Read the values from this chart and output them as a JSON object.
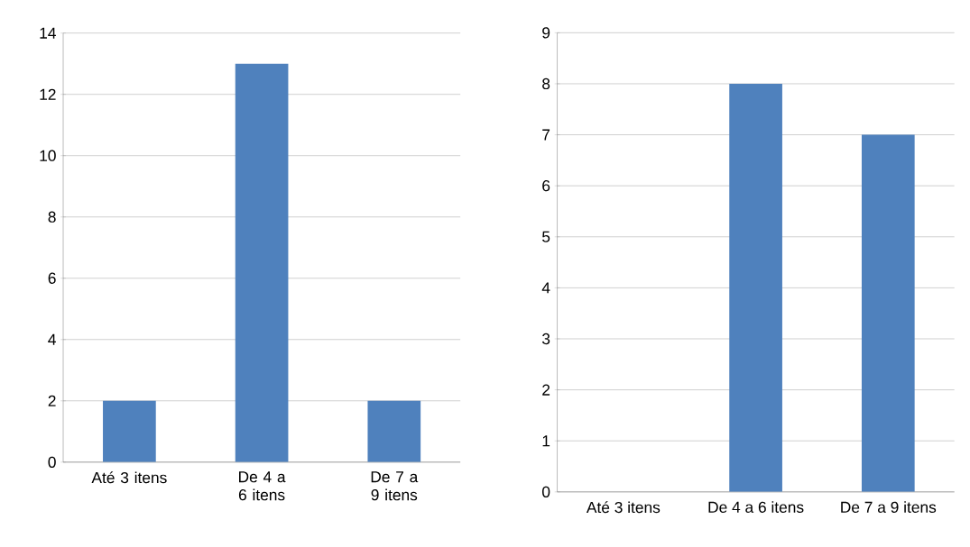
{
  "chart_data": [
    {
      "type": "bar",
      "categories": [
        "Até 3 itens",
        "De 4 a 6 itens",
        "De 7 a 9 itens"
      ],
      "values": [
        2,
        13,
        2
      ],
      "color": "#4f81bd",
      "ylim": [
        0,
        14
      ],
      "yticks": [
        0,
        2,
        4,
        6,
        8,
        10,
        12,
        14
      ],
      "grid": "y"
    },
    {
      "type": "bar",
      "categories": [
        "Até 3 itens",
        "De 4 a 6 itens",
        "De 7 a 9 itens"
      ],
      "values": [
        0,
        8,
        7
      ],
      "color": "#4f81bd",
      "ylim": [
        0,
        9
      ],
      "yticks": [
        0,
        1,
        2,
        3,
        4,
        5,
        6,
        7,
        8,
        9
      ],
      "grid": "y"
    }
  ]
}
